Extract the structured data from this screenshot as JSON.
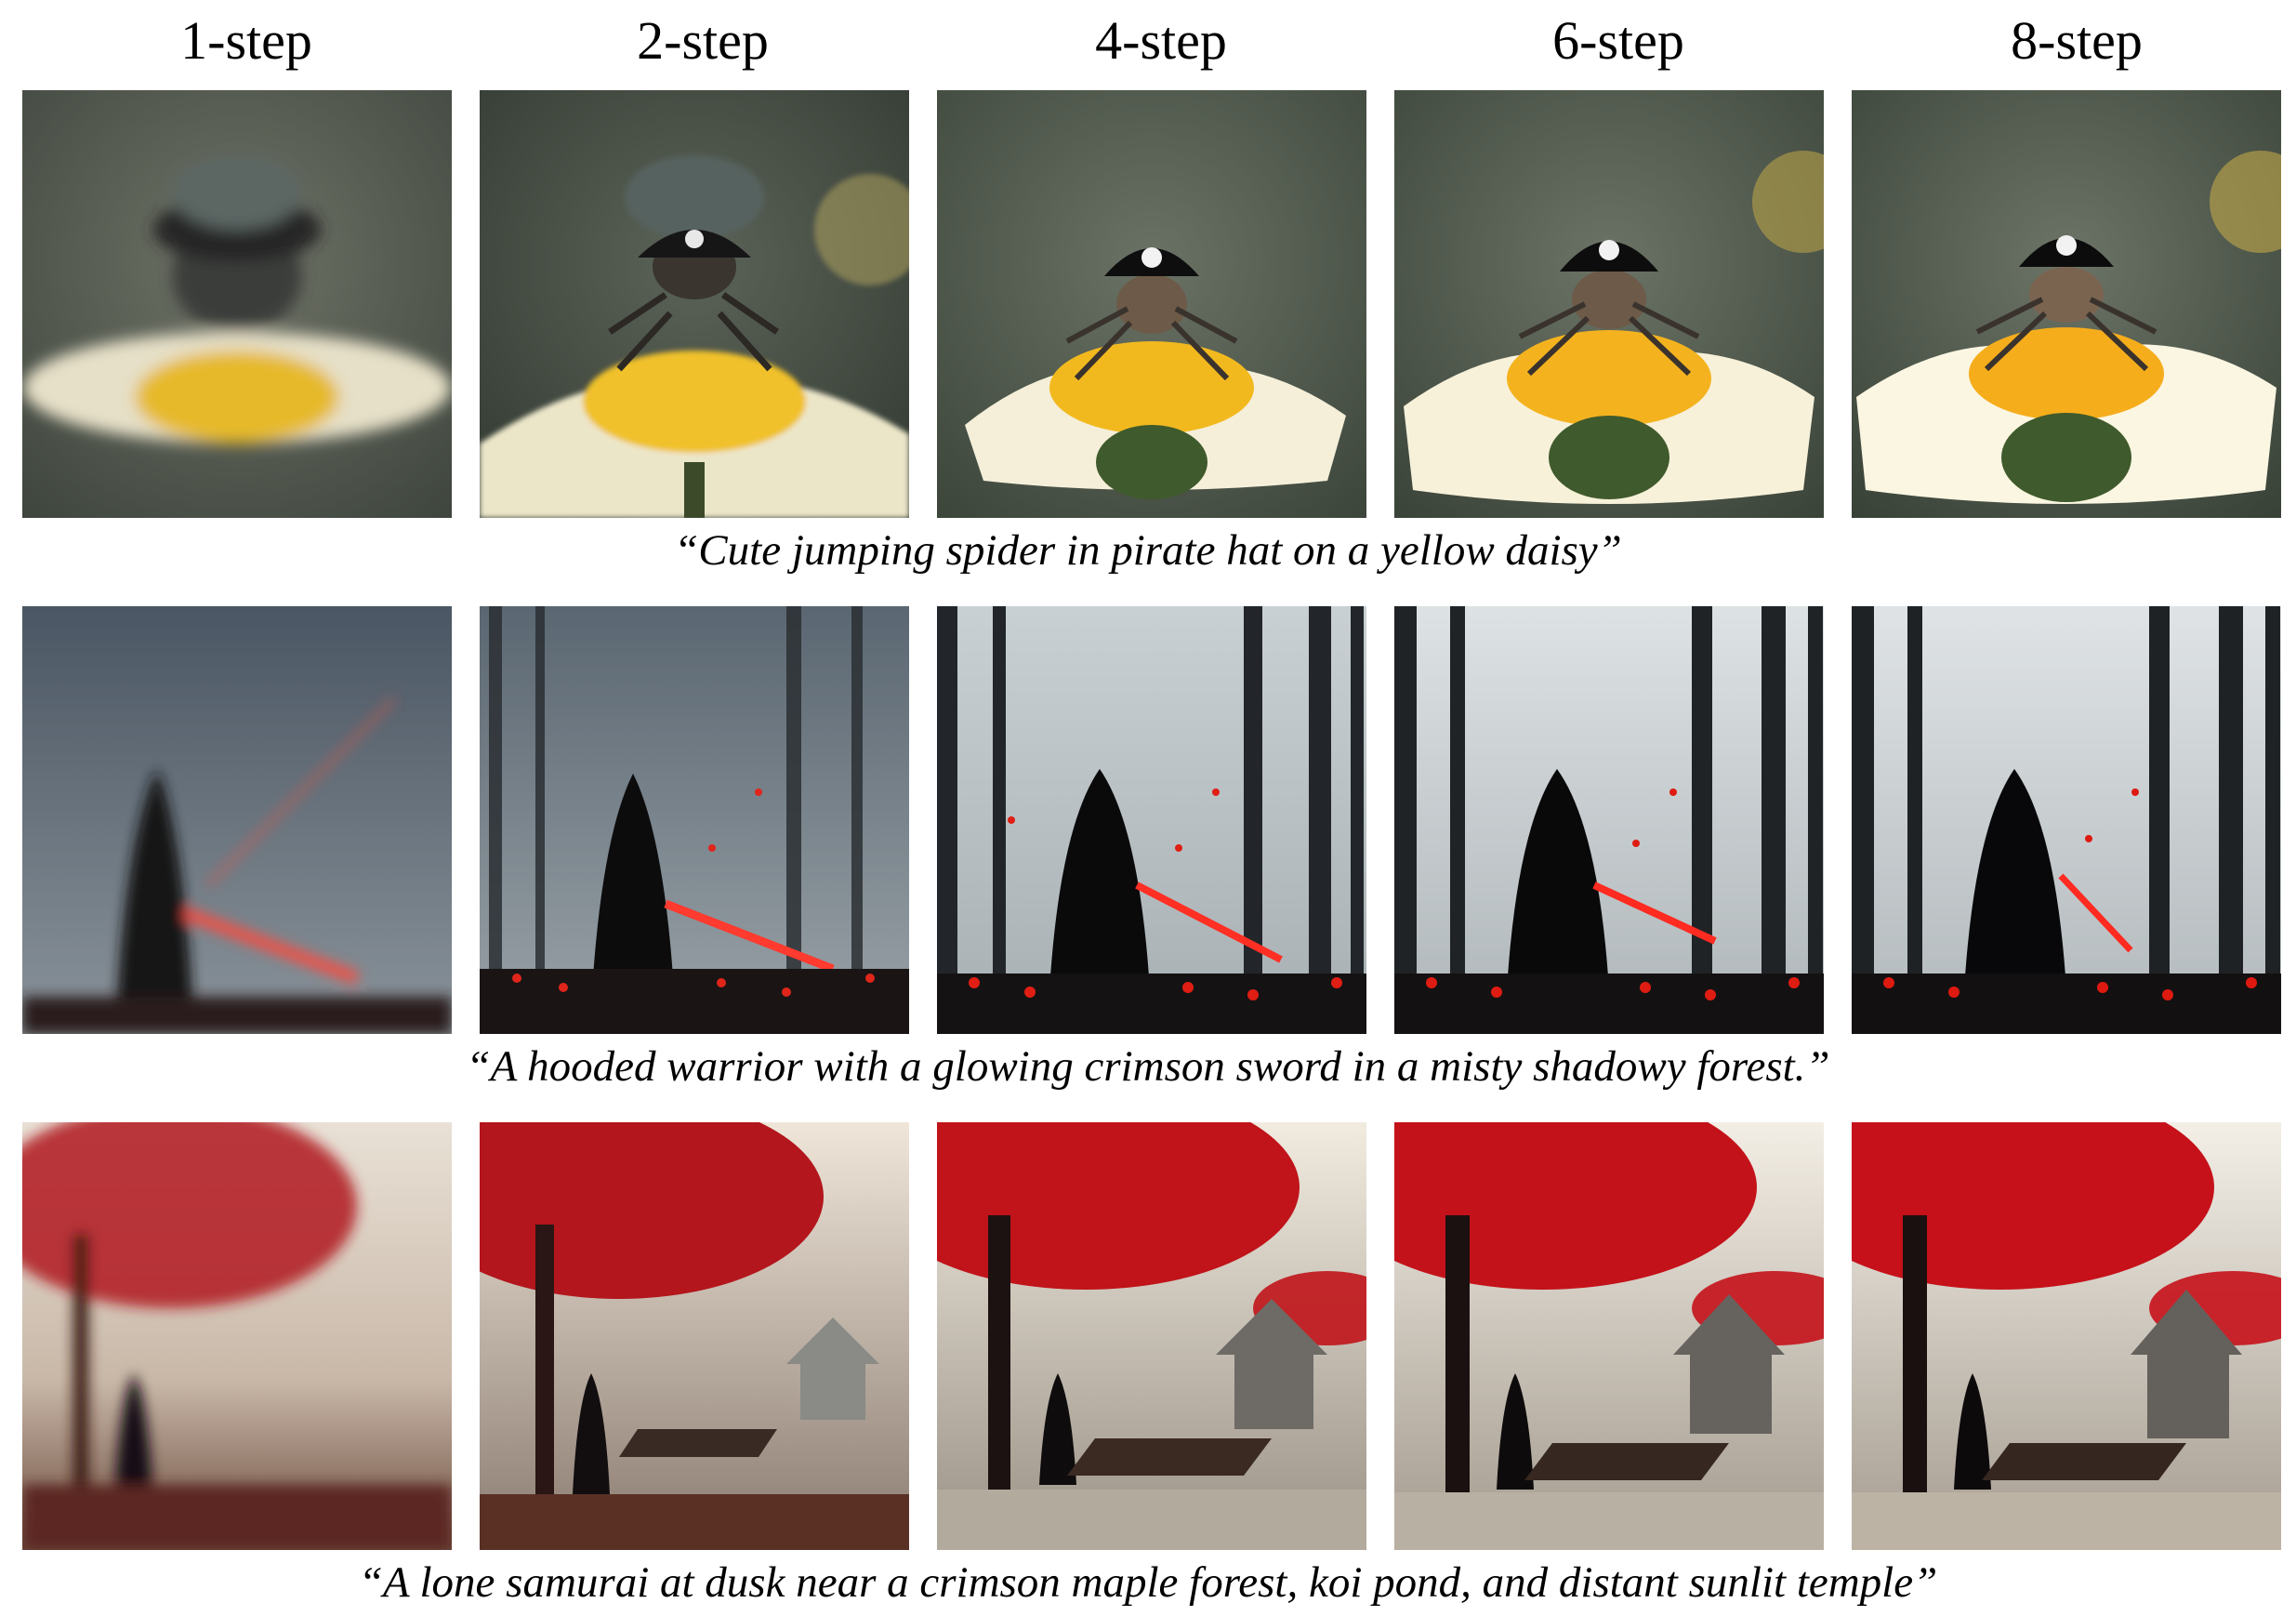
{
  "columns": [
    {
      "label": "1-step"
    },
    {
      "label": "2-step"
    },
    {
      "label": "4-step"
    },
    {
      "label": "6-step"
    },
    {
      "label": "8-step"
    }
  ],
  "rows": [
    {
      "caption": "“Cute jumping spider in pirate hat on a yellow daisy”",
      "subject": "spider",
      "colors": {
        "bg": "#4a5446",
        "accent": "#f2c12e",
        "petal": "#f4efd6",
        "hat": "#141414"
      }
    },
    {
      "caption": "“A hooded warrior with a glowing crimson sword in a misty shadowy forest.”",
      "subject": "warrior",
      "colors": {
        "bg": "#8d979e",
        "accent": "#ff3b30",
        "trees": "#1c1f22",
        "figure": "#0b0b0c"
      }
    },
    {
      "caption": "“A lone samurai at dusk near a crimson maple forest, koi pond, and distant sunlit temple”",
      "subject": "samurai",
      "colors": {
        "bg": "#d9d6cc",
        "accent": "#c2141b",
        "trees": "#1b1414",
        "water": "#bdb6a8"
      }
    }
  ]
}
